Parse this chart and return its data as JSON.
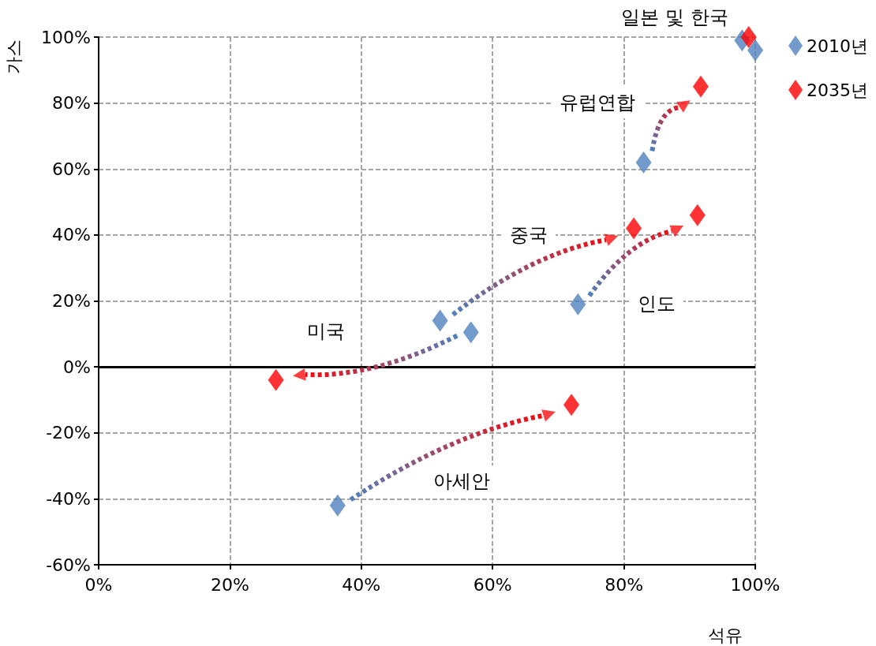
{
  "chart_data": {
    "type": "scatter",
    "xlabel": "석유",
    "ylabel": "가스",
    "series": [
      {
        "name": "2010년",
        "color": "#4f81bd",
        "x": [
          83,
          52,
          56.7,
          73,
          36.4,
          98,
          100
        ],
        "values": [
          62,
          14,
          10.5,
          19,
          -42,
          99,
          96
        ]
      },
      {
        "name": "2035년",
        "color": "#ff0000",
        "x": [
          91.7,
          81.5,
          27,
          91.2,
          72,
          99
        ],
        "values": [
          85,
          42,
          -4,
          46,
          -11.5,
          100
        ]
      }
    ],
    "xlim": [
      0,
      100
    ],
    "xticks": [
      {
        "value": 0,
        "label": "0%"
      },
      {
        "value": 20,
        "label": "20%"
      },
      {
        "value": 40,
        "label": "40%"
      },
      {
        "value": 60,
        "label": "60%"
      },
      {
        "value": 80,
        "label": "80%"
      },
      {
        "value": 100,
        "label": "100%"
      }
    ],
    "ylim": [
      -60,
      100
    ],
    "yticks": [
      {
        "value": -60,
        "label": "-60%"
      },
      {
        "value": -40,
        "label": "-40%"
      },
      {
        "value": -20,
        "label": "-20%"
      },
      {
        "value": 0,
        "label": "0%"
      },
      {
        "value": 20,
        "label": "20%"
      },
      {
        "value": 40,
        "label": "40%"
      },
      {
        "value": 60,
        "label": "60%"
      },
      {
        "value": 80,
        "label": "80%"
      },
      {
        "value": 100,
        "label": "100%"
      }
    ],
    "annotations": [
      "일본 및 한국",
      "유럽연합",
      "중국",
      "인도",
      "미국",
      "아세안"
    ],
    "ref_lines": [
      {
        "axis": "y",
        "value": 0,
        "color": "#000000"
      }
    ],
    "grid": true,
    "legend": "right",
    "marker": "diamond"
  }
}
